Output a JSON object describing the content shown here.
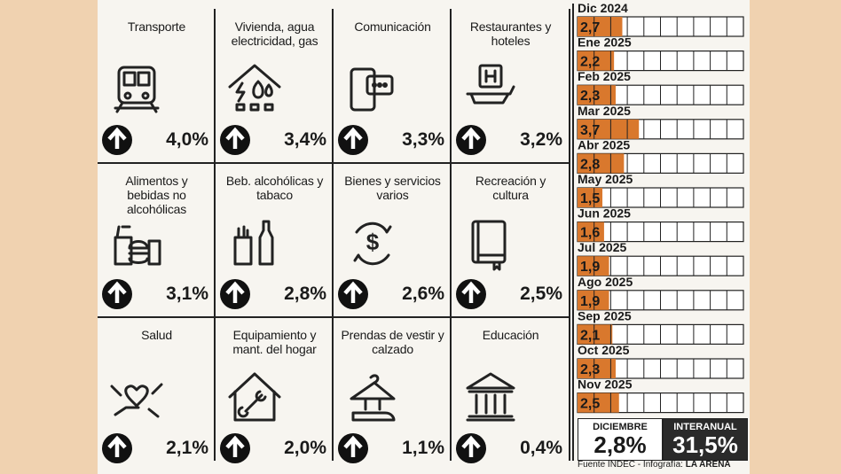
{
  "cards": [
    {
      "title": "Transporte",
      "value": "4,0%"
    },
    {
      "title": "Vivienda, agua electricidad, gas",
      "value": "3,4%"
    },
    {
      "title": "Comunicación",
      "value": "3,3%"
    },
    {
      "title": "Restaurantes y hoteles",
      "value": "3,2%"
    },
    {
      "title": "Alimentos y bebidas no alcohólicas",
      "value": "3,1%"
    },
    {
      "title": "Beb. alcohólicas y tabaco",
      "value": "2,8%"
    },
    {
      "title": "Bienes y servicios varios",
      "value": "2,6%"
    },
    {
      "title": "Recreación y cultura",
      "value": "2,5%"
    },
    {
      "title": "Salud",
      "value": "2,1%"
    },
    {
      "title": "Equipamiento y mant. del hogar",
      "value": "2,0%"
    },
    {
      "title": "Prendas de vestir y calzado",
      "value": "1,1%"
    },
    {
      "title": "Educación",
      "value": "0,4%"
    }
  ],
  "chart_data": {
    "type": "bar",
    "orientation": "horizontal",
    "categories": [
      "Dic 2024",
      "Ene 2025",
      "Feb 2025",
      "Mar 2025",
      "Abr 2025",
      "May 2025",
      "Jun 2025",
      "Jul 2025",
      "Ago 2025",
      "Sep 2025",
      "Oct 2025",
      "Nov 2025"
    ],
    "values": [
      2.7,
      2.2,
      2.3,
      3.7,
      2.8,
      1.5,
      1.6,
      1.9,
      1.9,
      2.1,
      2.3,
      2.5
    ],
    "value_labels": [
      "2,7",
      "2,2",
      "2,3",
      "3,7",
      "2,8",
      "1,5",
      "1,6",
      "1,9",
      "1,9",
      "2,1",
      "2,3",
      "2,5"
    ],
    "color": "#d9782d",
    "xlim": [
      0,
      10
    ]
  },
  "summary": [
    {
      "label": "DICIEMBRE",
      "value": "2,8%"
    },
    {
      "label": "INTERANUAL",
      "value": "31,5%"
    }
  ],
  "source": {
    "text": "Fuente INDEC - Infografía:",
    "brand": "LA ARENA"
  }
}
